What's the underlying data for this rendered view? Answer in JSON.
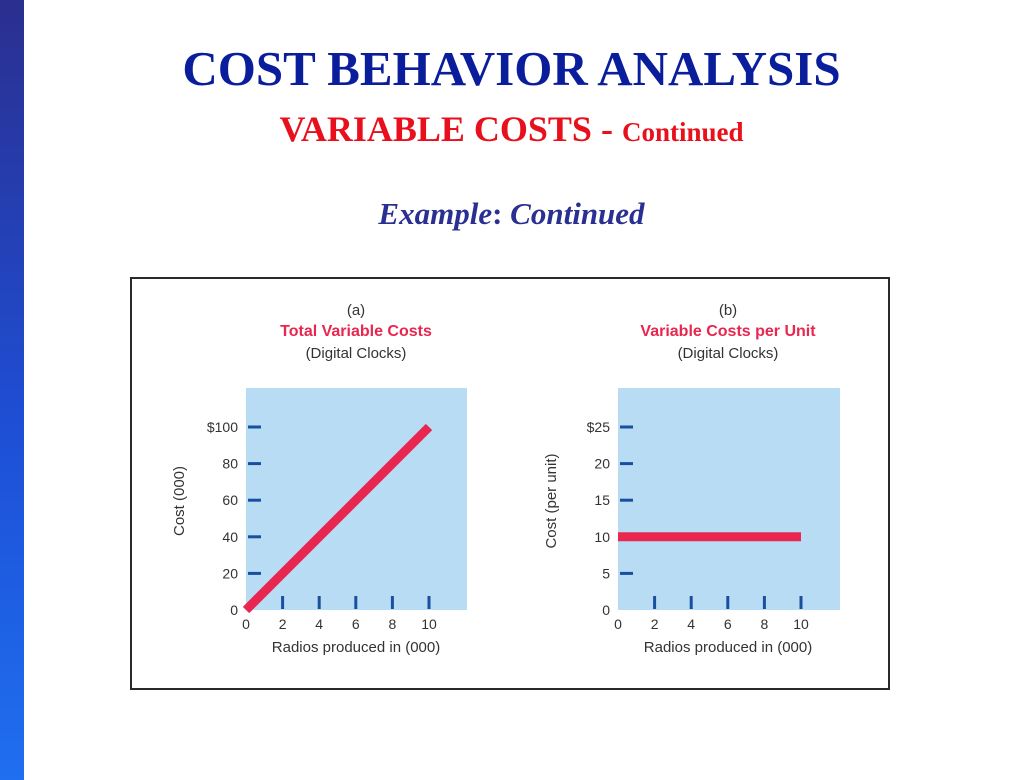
{
  "slide": {
    "title": "COST BEHAVIOR ANALYSIS",
    "subtitle_main": "VARIABLE COSTS -",
    "subtitle_small": "Continued",
    "example_label": "Example",
    "example_colon": ":",
    "example_rest": "Continued"
  },
  "colors": {
    "title": "#0a1e9c",
    "subtitle": "#e8101c",
    "example": "#2a2f92",
    "plot_bg": "#b8dcf3",
    "series_line": "#e8264f",
    "ticks": "#1a4fa0",
    "chart_title": "#e8264f"
  },
  "chart_data": [
    {
      "type": "line",
      "panel_label": "(a)",
      "title": "Total Variable Costs",
      "subtitle": "(Digital Clocks)",
      "xlabel": "Radios produced in (000)",
      "ylabel": "Cost (000)",
      "x_ticks": [
        "0",
        "2",
        "4",
        "6",
        "8",
        "10"
      ],
      "y_ticks": [
        "0",
        "20",
        "40",
        "60",
        "80",
        "$100"
      ],
      "x_tick_values": [
        0,
        2,
        4,
        6,
        8,
        10
      ],
      "y_tick_values": [
        0,
        20,
        40,
        60,
        80,
        100
      ],
      "xlim": [
        0,
        12
      ],
      "ylim": [
        0,
        120
      ],
      "series": [
        {
          "x": [
            0,
            10
          ],
          "y": [
            0,
            100
          ]
        }
      ]
    },
    {
      "type": "line",
      "panel_label": "(b)",
      "title": "Variable Costs per Unit",
      "subtitle": "(Digital Clocks)",
      "xlabel": "Radios produced in (000)",
      "ylabel": "Cost (per unit)",
      "x_ticks": [
        "0",
        "2",
        "4",
        "6",
        "8",
        "10"
      ],
      "y_ticks": [
        "0",
        "5",
        "10",
        "15",
        "20",
        "$25"
      ],
      "x_tick_values": [
        0,
        2,
        4,
        6,
        8,
        10
      ],
      "y_tick_values": [
        0,
        5,
        10,
        15,
        20,
        25
      ],
      "xlim": [
        0,
        12
      ],
      "ylim": [
        0,
        30
      ],
      "series": [
        {
          "x": [
            0,
            10
          ],
          "y": [
            10,
            10
          ]
        }
      ]
    }
  ]
}
